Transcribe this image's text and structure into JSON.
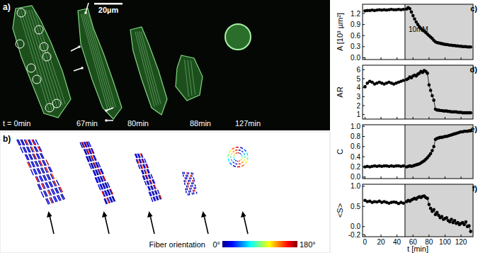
{
  "images": {
    "a": {
      "label": "a)",
      "scale_bar": "20µm",
      "times": [
        "t = 0min",
        "67min",
        "80min",
        "88min",
        "127min"
      ]
    },
    "b": {
      "label": "b)",
      "colorbar": {
        "title": "Fiber orientation",
        "range": [
          0,
          180
        ],
        "ticks": [
          {
            "value": 0,
            "label": "0°"
          },
          {
            "value": 180,
            "label": "180°"
          }
        ]
      }
    }
  },
  "chart_data": [
    {
      "type": "line",
      "panel": "c)",
      "y_label": "A [10³ µm²]",
      "x": [
        0,
        3,
        6,
        9,
        12,
        15,
        18,
        21,
        24,
        27,
        30,
        33,
        36,
        39,
        42,
        45,
        48,
        52,
        54,
        56,
        58,
        60,
        62,
        64,
        66,
        68,
        70,
        72,
        74,
        76,
        78,
        80,
        82,
        84,
        86,
        88,
        90,
        92,
        94,
        96,
        98,
        100,
        102,
        104,
        106,
        108,
        110,
        112,
        114,
        116,
        118,
        120,
        122,
        124,
        126,
        128,
        130,
        132
      ],
      "series": [
        {
          "color": "#000000",
          "marker": "circle",
          "values": [
            1.27,
            1.28,
            1.28,
            1.29,
            1.28,
            1.29,
            1.3,
            1.29,
            1.3,
            1.29,
            1.3,
            1.31,
            1.3,
            1.3,
            1.31,
            1.3,
            1.31,
            1.32,
            1.36,
            1.33,
            1.24,
            1.14,
            1.05,
            0.97,
            0.9,
            0.84,
            0.79,
            0.75,
            0.72,
            0.68,
            0.64,
            0.6,
            0.56,
            0.52,
            0.47,
            0.43,
            0.41,
            0.4,
            0.39,
            0.38,
            0.37,
            0.36,
            0.36,
            0.35,
            0.34,
            0.34,
            0.33,
            0.33,
            0.32,
            0.32,
            0.31,
            0.31,
            0.3,
            0.3,
            0.3,
            0.29,
            0.29,
            0.29
          ]
        }
      ],
      "xlim": [
        -3,
        135
      ],
      "xticks": [
        0,
        20,
        40,
        60,
        80,
        100,
        120
      ],
      "ylim": [
        -0.05,
        1.45
      ],
      "yticks": [
        {
          "value": 0,
          "label": "0.0"
        },
        0.3,
        0.6,
        0.9,
        1.2
      ],
      "tick_labels": "y",
      "treatment": {
        "start": 50,
        "label": "10mM"
      }
    },
    {
      "type": "line",
      "panel": "d)",
      "y_label": "AR",
      "x": [
        0,
        3,
        6,
        9,
        12,
        15,
        18,
        21,
        24,
        27,
        30,
        33,
        36,
        39,
        42,
        45,
        48,
        52,
        54,
        56,
        58,
        60,
        62,
        64,
        66,
        68,
        70,
        72,
        74,
        76,
        78,
        80,
        82,
        84,
        86,
        88,
        90,
        92,
        94,
        96,
        98,
        100,
        102,
        104,
        106,
        108,
        110,
        112,
        114,
        116,
        118,
        120,
        122,
        124,
        126,
        128,
        130,
        132
      ],
      "series": [
        {
          "color": "#000000",
          "marker": "circle",
          "values": [
            4.1,
            4.5,
            4.7,
            4.6,
            4.4,
            4.5,
            4.6,
            4.5,
            4.4,
            4.5,
            4.6,
            4.5,
            4.4,
            4.5,
            4.6,
            4.7,
            4.8,
            4.9,
            5.0,
            5.2,
            5.1,
            5.3,
            5.4,
            5.3,
            5.5,
            5.6,
            5.8,
            5.7,
            5.9,
            5.8,
            5.6,
            4.3,
            3.7,
            3.1,
            2.6,
            1.6,
            1.5,
            1.5,
            1.45,
            1.45,
            1.4,
            1.4,
            1.4,
            1.35,
            1.35,
            1.3,
            1.3,
            1.3,
            1.3,
            1.25,
            1.25,
            1.25,
            1.2,
            1.2,
            1.2,
            1.2,
            1.2,
            1.2
          ]
        }
      ],
      "xlim": [
        -3,
        135
      ],
      "xticks": [
        0,
        20,
        40,
        60,
        80,
        100,
        120
      ],
      "ylim": [
        0.5,
        6.5
      ],
      "yticks": [
        1,
        2,
        3,
        4,
        5,
        6
      ],
      "tick_labels": "y",
      "treatment": {
        "start": 50
      }
    },
    {
      "type": "line",
      "panel": "e)",
      "y_label": "C",
      "x": [
        0,
        3,
        6,
        9,
        12,
        15,
        18,
        21,
        24,
        27,
        30,
        33,
        36,
        39,
        42,
        45,
        48,
        52,
        54,
        56,
        58,
        60,
        62,
        64,
        66,
        68,
        70,
        72,
        74,
        76,
        78,
        80,
        82,
        84,
        86,
        88,
        90,
        92,
        94,
        96,
        98,
        100,
        102,
        104,
        106,
        108,
        110,
        112,
        114,
        116,
        118,
        120,
        122,
        124,
        126,
        128,
        130,
        132
      ],
      "series": [
        {
          "color": "#000000",
          "marker": "circle",
          "values": [
            0.2,
            0.21,
            0.2,
            0.21,
            0.22,
            0.21,
            0.22,
            0.21,
            0.22,
            0.22,
            0.21,
            0.22,
            0.21,
            0.22,
            0.22,
            0.21,
            0.22,
            0.2,
            0.21,
            0.22,
            0.21,
            0.22,
            0.23,
            0.24,
            0.25,
            0.26,
            0.28,
            0.3,
            0.32,
            0.35,
            0.38,
            0.42,
            0.46,
            0.52,
            0.6,
            0.74,
            0.76,
            0.77,
            0.78,
            0.78,
            0.79,
            0.8,
            0.8,
            0.81,
            0.82,
            0.83,
            0.84,
            0.85,
            0.86,
            0.87,
            0.88,
            0.89,
            0.89,
            0.9,
            0.9,
            0.9,
            0.91,
            0.91
          ]
        }
      ],
      "xlim": [
        -3,
        135
      ],
      "xticks": [
        0,
        20,
        40,
        60,
        80,
        100,
        120
      ],
      "ylim": [
        -0.03,
        1.03
      ],
      "yticks": [
        {
          "value": 0,
          "label": "0.0"
        },
        0.2,
        0.4,
        0.6,
        0.8,
        {
          "value": 1,
          "label": "1.0"
        }
      ],
      "tick_labels": "y",
      "treatment": {
        "start": 50
      }
    },
    {
      "type": "line",
      "panel": "f)",
      "y_label": "<S>",
      "x_label": "t [min]",
      "x": [
        0,
        3,
        6,
        9,
        12,
        15,
        18,
        21,
        24,
        27,
        30,
        33,
        36,
        39,
        42,
        45,
        48,
        52,
        54,
        56,
        58,
        60,
        62,
        64,
        66,
        68,
        70,
        72,
        74,
        76,
        78,
        80,
        82,
        84,
        86,
        88,
        90,
        92,
        94,
        96,
        98,
        100,
        102,
        104,
        106,
        108,
        110,
        112,
        114,
        116,
        118,
        120,
        122,
        124,
        126,
        128,
        130,
        132
      ],
      "series": [
        {
          "color": "#000000",
          "marker": "circle",
          "values": [
            0.65,
            0.62,
            0.63,
            0.6,
            0.62,
            0.61,
            0.63,
            0.6,
            0.62,
            0.6,
            0.58,
            0.6,
            0.61,
            0.6,
            0.57,
            0.6,
            0.58,
            0.62,
            0.65,
            0.63,
            0.66,
            0.68,
            0.7,
            0.68,
            0.72,
            0.74,
            0.72,
            0.75,
            0.76,
            0.72,
            0.7,
            0.55,
            0.45,
            0.38,
            0.42,
            0.3,
            0.35,
            0.28,
            0.22,
            0.25,
            0.18,
            0.2,
            0.22,
            0.15,
            0.12,
            0.18,
            0.1,
            0.15,
            0.08,
            0.1,
            0.05,
            0.08,
            0.1,
            0.05,
            0.12,
            0.0,
            0.02,
            -0.12
          ]
        }
      ],
      "xlim": [
        -3,
        135
      ],
      "xticks": [
        0,
        20,
        40,
        60,
        80,
        100,
        120
      ],
      "ylim": [
        -0.25,
        1.05
      ],
      "yticks": [
        -0.2,
        {
          "value": 0,
          "label": "0.0"
        },
        0.5,
        {
          "value": 1,
          "label": "1.0"
        }
      ],
      "treatment": {
        "start": 50
      }
    }
  ]
}
